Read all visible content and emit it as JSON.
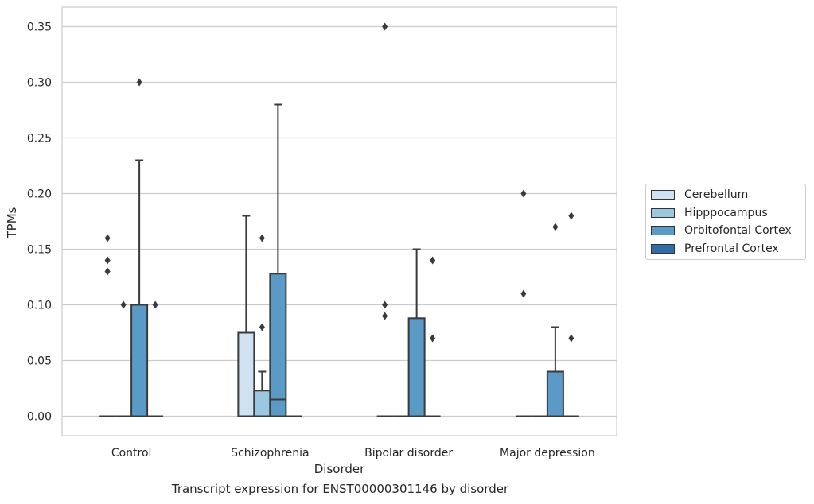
{
  "chart_data": {
    "type": "box",
    "xlabel": "Disorder",
    "ylabel": "TPMs",
    "caption": "Transcript expression for ENST00000301146 by disorder",
    "ylim": [
      -0.0175,
      0.3675
    ],
    "yticks": [
      0.0,
      0.05,
      0.1,
      0.15,
      0.2,
      0.25,
      0.3,
      0.35
    ],
    "ytick_labels": [
      "0.00",
      "0.05",
      "0.10",
      "0.15",
      "0.20",
      "0.25",
      "0.30",
      "0.35"
    ],
    "categories": [
      "Control",
      "Schizophrenia",
      "Bipolar disorder",
      "Major depression"
    ],
    "grid": true,
    "legend_position": "right",
    "series": [
      {
        "name": "Cerebellum",
        "color": "#d0e1f2",
        "boxes": [
          {
            "q1": 0,
            "median": 0,
            "q3": 0,
            "whisker_low": 0,
            "whisker_high": 0,
            "outliers": [
              0.13,
              0.14,
              0.16
            ]
          },
          {
            "q1": 0,
            "median": 0,
            "q3": 0.075,
            "whisker_low": 0,
            "whisker_high": 0.18,
            "outliers": []
          },
          {
            "q1": 0,
            "median": 0,
            "q3": 0,
            "whisker_low": 0,
            "whisker_high": 0,
            "outliers": [
              0.09,
              0.1,
              0.35
            ]
          },
          {
            "q1": 0,
            "median": 0,
            "q3": 0,
            "whisker_low": 0,
            "whisker_high": 0,
            "outliers": [
              0.11,
              0.2
            ]
          }
        ]
      },
      {
        "name": "Hipppocampus",
        "color": "#9ac8e0",
        "boxes": [
          {
            "q1": 0,
            "median": 0,
            "q3": 0,
            "whisker_low": 0,
            "whisker_high": 0,
            "outliers": [
              0.1
            ]
          },
          {
            "q1": 0,
            "median": 0,
            "q3": 0.023,
            "whisker_low": 0,
            "whisker_high": 0.04,
            "outliers": [
              0.08,
              0.16
            ]
          },
          {
            "q1": 0,
            "median": 0,
            "q3": 0,
            "whisker_low": 0,
            "whisker_high": 0,
            "outliers": []
          },
          {
            "q1": 0,
            "median": 0,
            "q3": 0,
            "whisker_low": 0,
            "whisker_high": 0,
            "outliers": []
          }
        ]
      },
      {
        "name": "Orbitofontal Cortex",
        "color": "#5a9ac6",
        "boxes": [
          {
            "q1": 0,
            "median": 0,
            "q3": 0.1,
            "whisker_low": 0,
            "whisker_high": 0.23,
            "outliers": [
              0.3
            ]
          },
          {
            "q1": 0,
            "median": 0.015,
            "q3": 0.128,
            "whisker_low": 0,
            "whisker_high": 0.28,
            "outliers": []
          },
          {
            "q1": 0,
            "median": 0,
            "q3": 0.088,
            "whisker_low": 0,
            "whisker_high": 0.15,
            "outliers": []
          },
          {
            "q1": 0,
            "median": 0,
            "q3": 0.04,
            "whisker_low": 0,
            "whisker_high": 0.08,
            "outliers": [
              0.17
            ]
          }
        ]
      },
      {
        "name": "Prefrontal Cortex",
        "color": "#2f6ca8",
        "boxes": [
          {
            "q1": 0,
            "median": 0,
            "q3": 0,
            "whisker_low": 0,
            "whisker_high": 0,
            "outliers": [
              0.1
            ]
          },
          {
            "q1": 0,
            "median": 0,
            "q3": 0,
            "whisker_low": 0,
            "whisker_high": 0,
            "outliers": []
          },
          {
            "q1": 0,
            "median": 0,
            "q3": 0,
            "whisker_low": 0,
            "whisker_high": 0,
            "outliers": [
              0.07,
              0.14
            ]
          },
          {
            "q1": 0,
            "median": 0,
            "q3": 0,
            "whisker_low": 0,
            "whisker_high": 0,
            "outliers": [
              0.07,
              0.18
            ]
          }
        ]
      }
    ]
  }
}
